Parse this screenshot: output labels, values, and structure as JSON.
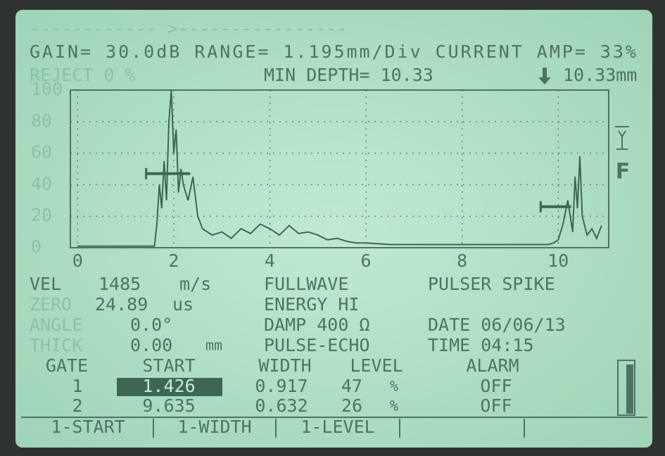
{
  "status": {
    "gain_line": "GAIN= 30.0dB RANGE= 1.195mm/Div CURRENT AMP= 33%",
    "reject": "REJECT 0 %",
    "min_depth": "MIN DEPTH= 10.33",
    "depth_reading": "10.33mm"
  },
  "ascan": {
    "xlim": [
      -0.15,
      11.05
    ],
    "ylim": [
      0,
      100
    ],
    "xticks": [
      0,
      2,
      4,
      6,
      8,
      10
    ],
    "yticks": [
      100,
      80,
      60,
      40,
      20,
      0
    ],
    "x": [
      0,
      1.6,
      1.65,
      1.7,
      1.75,
      1.8,
      1.85,
      1.9,
      1.95,
      2.0,
      2.05,
      2.1,
      2.15,
      2.2,
      2.3,
      2.4,
      2.5,
      2.6,
      2.8,
      3.0,
      3.2,
      3.4,
      3.6,
      3.8,
      4.0,
      4.2,
      4.4,
      4.6,
      4.8,
      5.0,
      5.2,
      5.4,
      5.6,
      5.8,
      6.0,
      6.5,
      7.0,
      7.5,
      8.0,
      8.5,
      9.0,
      9.5,
      9.8,
      9.9,
      10.0,
      10.1,
      10.2,
      10.3,
      10.35,
      10.4,
      10.45,
      10.5,
      10.6,
      10.7,
      10.8,
      10.9
    ],
    "values": [
      1,
      1,
      15,
      40,
      25,
      55,
      30,
      80,
      100,
      60,
      75,
      35,
      50,
      40,
      30,
      45,
      20,
      12,
      8,
      10,
      6,
      12,
      9,
      15,
      12,
      8,
      14,
      9,
      10,
      8,
      5,
      6,
      4,
      3,
      3,
      2,
      2,
      2,
      2,
      2,
      2,
      2,
      2,
      3,
      5,
      15,
      30,
      10,
      45,
      25,
      58,
      20,
      8,
      12,
      6,
      14
    ]
  },
  "indicators": {
    "mode": "F"
  },
  "settings": [
    {
      "label": "VEL",
      "value": "1485",
      "unit": "m/s"
    },
    {
      "label": "ZERO",
      "value": "24.89",
      "unit": "us"
    },
    {
      "label": "ANGLE",
      "value": "0.0°"
    },
    {
      "label": "THICK",
      "value": "0.00",
      "unit": "mm"
    }
  ],
  "modes": [
    "FULLWAVE",
    "ENERGY HI",
    "DAMP 400 Ω",
    "PULSE-ECHO"
  ],
  "info": [
    "PULSER SPIKE",
    "DATE 06/06/13",
    "TIME 04:15"
  ],
  "gates": {
    "header": [
      "GATE",
      "START",
      "WIDTH",
      "LEVEL",
      "ALARM"
    ],
    "rows": [
      {
        "gate": 1,
        "start": 1.426,
        "width": 0.917,
        "level": 47,
        "level_unit": "%",
        "alarm": "OFF"
      },
      {
        "gate": 2,
        "start": 9.635,
        "width": 0.632,
        "level": 26,
        "level_unit": "%",
        "alarm": "OFF"
      }
    ]
  },
  "softkeys": [
    "1-START",
    "1-WIDTH",
    "1-LEVEL"
  ]
}
